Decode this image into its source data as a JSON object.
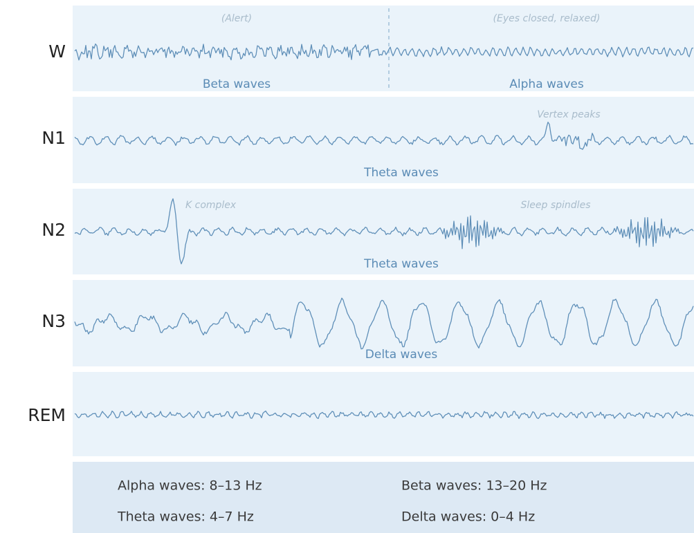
{
  "rows": [
    {
      "label": "W",
      "annotations": [
        "(Alert)",
        "(Eyes closed, relaxed)"
      ],
      "waves": [
        "Beta waves",
        "Alpha waves"
      ]
    },
    {
      "label": "N1",
      "annotations": [
        "Vertex peaks"
      ],
      "waves": [
        "Theta waves"
      ]
    },
    {
      "label": "N2",
      "annotations": [
        "K complex",
        "Sleep spindles"
      ],
      "waves": [
        "Theta waves"
      ]
    },
    {
      "label": "N3",
      "waves": [
        "Delta waves"
      ]
    },
    {
      "label": "REM"
    }
  ],
  "legend": [
    "Alpha waves: 8–13 Hz",
    "Beta waves: 13–20 Hz",
    "Theta waves: 4–7 Hz",
    "Delta waves: 0–4 Hz"
  ]
}
